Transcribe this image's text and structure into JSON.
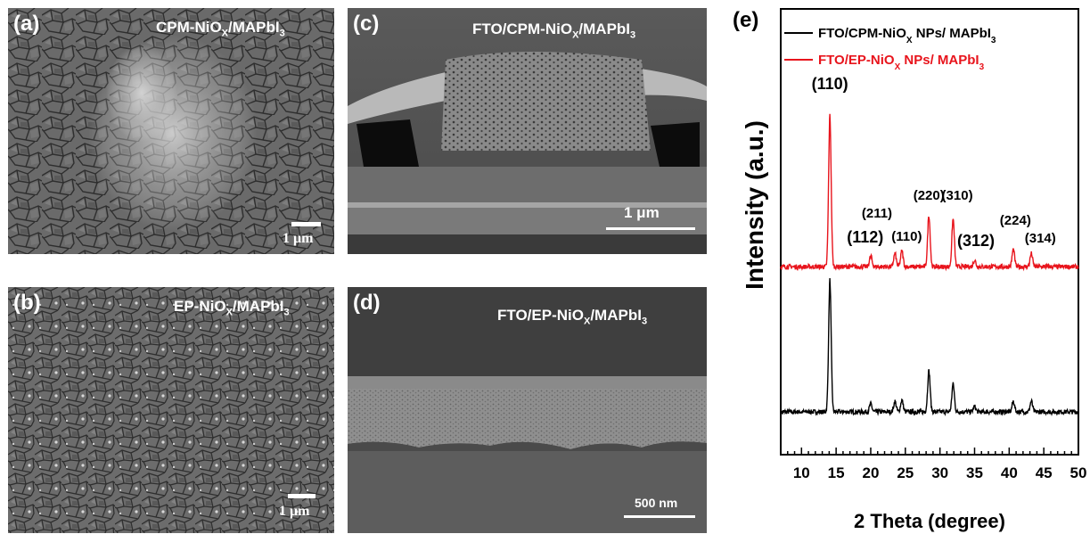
{
  "panels": {
    "a": {
      "label": "(a)",
      "title_main": "CPM-NiO",
      "title_sub": "X",
      "title_rest": "/MAPbI",
      "title_sub2": "3",
      "scale": "1 μm"
    },
    "b": {
      "label": "(b)",
      "title_main": "EP-NiO",
      "title_sub": "X",
      "title_rest": "/MAPbI",
      "title_sub2": "3",
      "scale": "1 μm"
    },
    "c": {
      "label": "(c)",
      "title_main": "FTO/CPM-NiO",
      "title_sub": "X",
      "title_rest": "/MAPbI",
      "title_sub2": "3",
      "scale": "1 μm"
    },
    "d": {
      "label": "(d)",
      "title_main": "FTO/EP-NiO",
      "title_sub": "X",
      "title_rest": "/MAPbI",
      "title_sub2": "3",
      "scale": "500 nm"
    }
  },
  "chart_data": {
    "type": "line",
    "panel_label": "(e)",
    "xlabel": "2 Theta (degree)",
    "ylabel": "Intensity (a.u.)",
    "xlim": [
      7,
      50
    ],
    "xticks": [
      10,
      15,
      20,
      25,
      30,
      35,
      40,
      45,
      50
    ],
    "legend": [
      {
        "name": "FTO/CPM-NiOX NPs/ MAPbI3",
        "main": "FTO/CPM-NiO",
        "sub": "X",
        "rest": " NPs/ MAPbI",
        "sub2": "3",
        "color": "#000000"
      },
      {
        "name": "FTO/EP-NiOX NPs/ MAPbI3",
        "main": "FTO/EP-NiO",
        "sub": "X",
        "rest": " NPs/ MAPbI",
        "sub2": "3",
        "color": "#e8141c"
      }
    ],
    "series": [
      {
        "name": "FTO/CPM-NiOX NPs/ MAPbI3",
        "color": "#000000",
        "baseline": 0.0,
        "peaks": [
          {
            "x": 14.1,
            "y": 1.0
          },
          {
            "x": 20.0,
            "y": 0.06
          },
          {
            "x": 23.5,
            "y": 0.08
          },
          {
            "x": 24.5,
            "y": 0.09
          },
          {
            "x": 28.4,
            "y": 0.31
          },
          {
            "x": 31.9,
            "y": 0.21
          },
          {
            "x": 35.0,
            "y": 0.04
          },
          {
            "x": 40.6,
            "y": 0.08
          },
          {
            "x": 43.2,
            "y": 0.08
          }
        ]
      },
      {
        "name": "FTO/EP-NiOX NPs/ MAPbI3",
        "color": "#e8141c",
        "baseline": 1.1,
        "peaks": [
          {
            "x": 14.1,
            "y": 1.15
          },
          {
            "x": 20.0,
            "y": 0.08
          },
          {
            "x": 23.5,
            "y": 0.1
          },
          {
            "x": 24.5,
            "y": 0.12
          },
          {
            "x": 28.4,
            "y": 0.39
          },
          {
            "x": 31.9,
            "y": 0.36
          },
          {
            "x": 35.0,
            "y": 0.05
          },
          {
            "x": 40.6,
            "y": 0.13
          },
          {
            "x": 43.2,
            "y": 0.1
          }
        ]
      }
    ],
    "annotations": [
      {
        "text": "(110)",
        "x": 14.1,
        "size": "big"
      },
      {
        "text": "(112)",
        "x": 19.2,
        "size": "big"
      },
      {
        "text": "(211)",
        "x": 20.9,
        "size": "small"
      },
      {
        "text": "(110)",
        "x": 25.2,
        "size": "small"
      },
      {
        "text": "(220)",
        "x": 28.4,
        "size": "small"
      },
      {
        "text": "(310)",
        "x": 32.5,
        "size": "small"
      },
      {
        "text": "(312)",
        "x": 35.2,
        "size": "big"
      },
      {
        "text": "(224)",
        "x": 40.9,
        "size": "small"
      },
      {
        "text": "(314)",
        "x": 44.5,
        "size": "small"
      }
    ]
  }
}
